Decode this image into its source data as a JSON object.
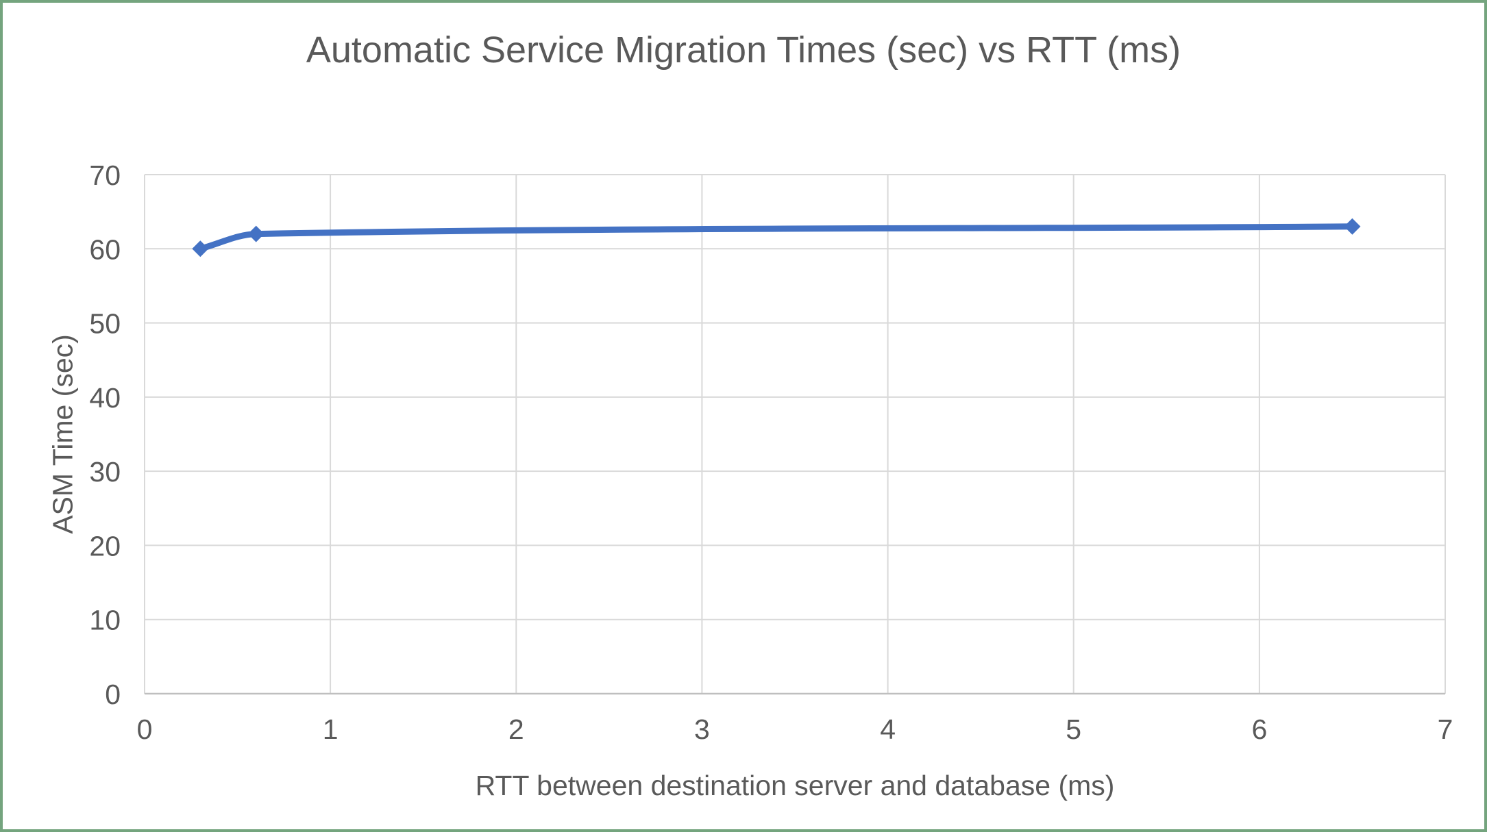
{
  "window": {
    "border_color": "#74a47e",
    "background": "#ffffff"
  },
  "chart_data": {
    "type": "line",
    "title": "Automatic Service Migration Times (sec) vs RTT (ms)",
    "xlabel": "RTT between destination server and database (ms)",
    "ylabel": "ASM Time (sec)",
    "series": [
      {
        "points": [
          {
            "x": 0.3,
            "y": 60
          },
          {
            "x": 0.6,
            "y": 62
          },
          {
            "x": 6.5,
            "y": 63
          }
        ],
        "color": "#4472C4",
        "marker": "diamond",
        "line_style": "smooth"
      }
    ],
    "xlim": [
      0,
      7
    ],
    "ylim": [
      0,
      70
    ],
    "xticks": [
      0,
      1,
      2,
      3,
      4,
      5,
      6,
      7
    ],
    "yticks": [
      0,
      10,
      20,
      30,
      40,
      50,
      60,
      70
    ],
    "grid": true,
    "legend": false,
    "gridline_color": "#D9D9D9",
    "axis_line_color": "#BFBFBF",
    "text_color": "#595959"
  }
}
